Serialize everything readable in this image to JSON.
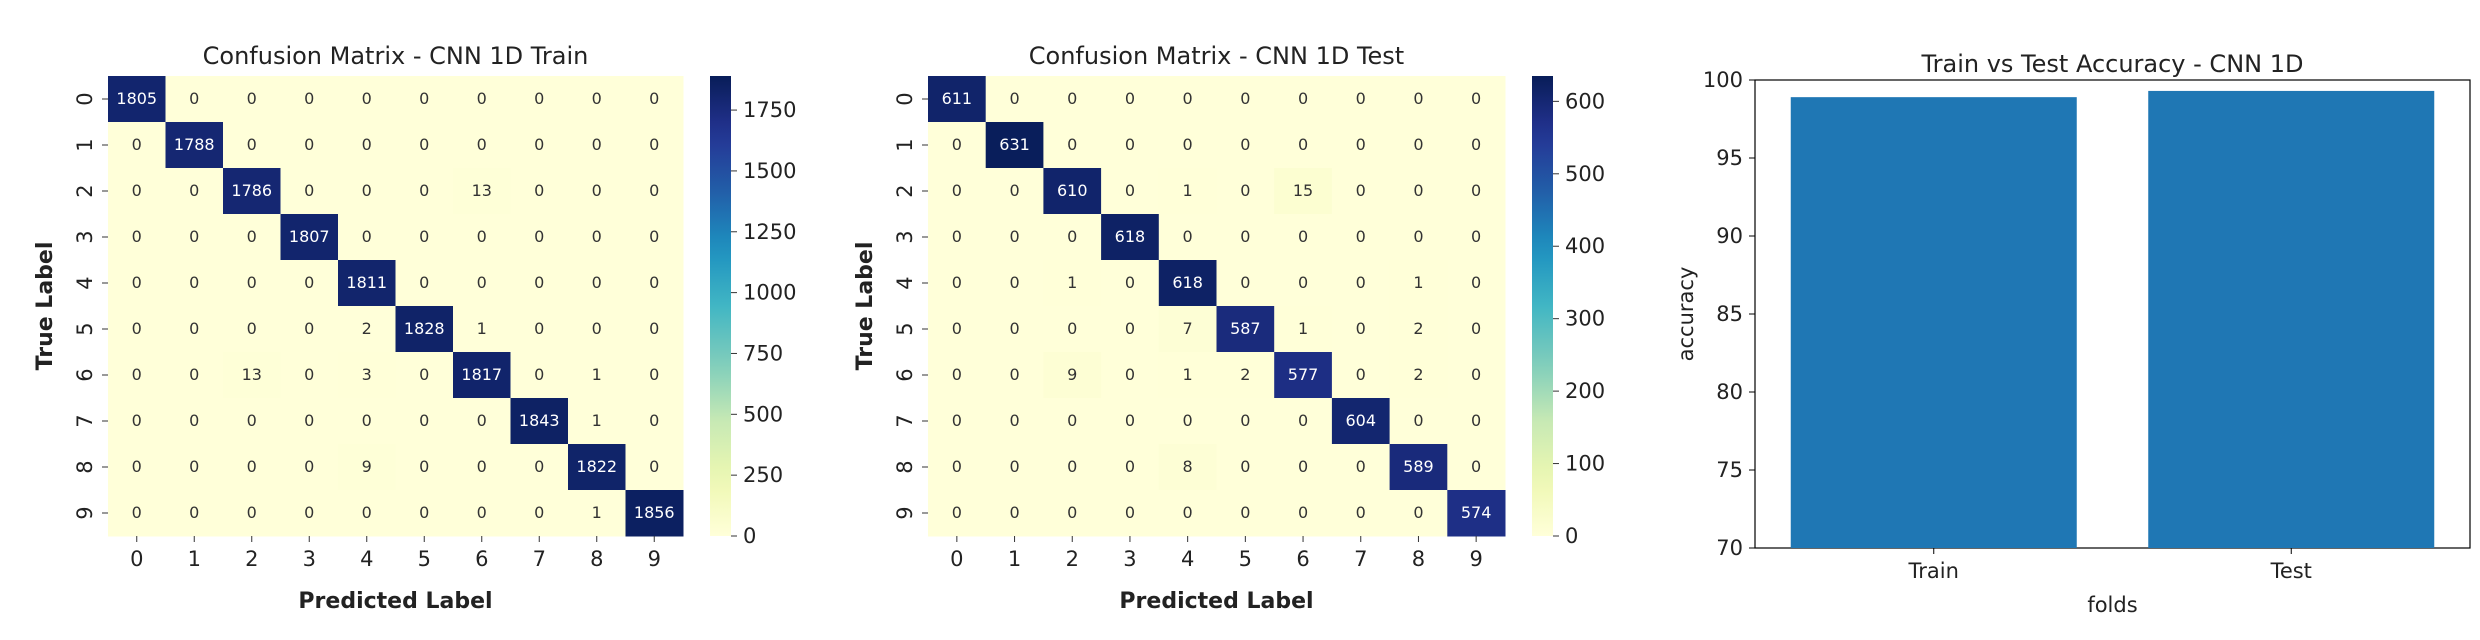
{
  "chart_data": [
    {
      "type": "heatmap",
      "title": "Confusion Matrix - CNN 1D Train",
      "xlabel": "Predicted Label",
      "ylabel": "True Label",
      "x_ticks": [
        "0",
        "1",
        "2",
        "3",
        "4",
        "5",
        "6",
        "7",
        "8",
        "9"
      ],
      "y_ticks": [
        "0",
        "1",
        "2",
        "3",
        "4",
        "5",
        "6",
        "7",
        "8",
        "9"
      ],
      "matrix": [
        [
          1805,
          0,
          0,
          0,
          0,
          0,
          0,
          0,
          0,
          0
        ],
        [
          0,
          1788,
          0,
          0,
          0,
          0,
          0,
          0,
          0,
          0
        ],
        [
          0,
          0,
          1786,
          0,
          0,
          0,
          13,
          0,
          0,
          0
        ],
        [
          0,
          0,
          0,
          1807,
          0,
          0,
          0,
          0,
          0,
          0
        ],
        [
          0,
          0,
          0,
          0,
          1811,
          0,
          0,
          0,
          0,
          0
        ],
        [
          0,
          0,
          0,
          0,
          2,
          1828,
          1,
          0,
          0,
          0
        ],
        [
          0,
          0,
          13,
          0,
          3,
          0,
          1817,
          0,
          1,
          0
        ],
        [
          0,
          0,
          0,
          0,
          0,
          0,
          0,
          1843,
          1,
          0
        ],
        [
          0,
          0,
          0,
          0,
          9,
          0,
          0,
          0,
          1822,
          0
        ],
        [
          0,
          0,
          0,
          0,
          0,
          0,
          0,
          0,
          1,
          1856
        ]
      ],
      "colorbar": {
        "min": 0,
        "max": 1890,
        "ticks": [
          0,
          250,
          500,
          750,
          1000,
          1250,
          1500,
          1750
        ]
      },
      "colormap": "YlGnBu"
    },
    {
      "type": "heatmap",
      "title": "Confusion Matrix - CNN 1D Test",
      "xlabel": "Predicted Label",
      "ylabel": "True Label",
      "x_ticks": [
        "0",
        "1",
        "2",
        "3",
        "4",
        "5",
        "6",
        "7",
        "8",
        "9"
      ],
      "y_ticks": [
        "0",
        "1",
        "2",
        "3",
        "4",
        "5",
        "6",
        "7",
        "8",
        "9"
      ],
      "matrix": [
        [
          611,
          0,
          0,
          0,
          0,
          0,
          0,
          0,
          0,
          0
        ],
        [
          0,
          631,
          0,
          0,
          0,
          0,
          0,
          0,
          0,
          0
        ],
        [
          0,
          0,
          610,
          0,
          1,
          0,
          15,
          0,
          0,
          0
        ],
        [
          0,
          0,
          0,
          618,
          0,
          0,
          0,
          0,
          0,
          0
        ],
        [
          0,
          0,
          1,
          0,
          618,
          0,
          0,
          0,
          1,
          0
        ],
        [
          0,
          0,
          0,
          0,
          7,
          587,
          1,
          0,
          2,
          0
        ],
        [
          0,
          0,
          9,
          0,
          1,
          2,
          577,
          0,
          2,
          0
        ],
        [
          0,
          0,
          0,
          0,
          0,
          0,
          0,
          604,
          0,
          0
        ],
        [
          0,
          0,
          0,
          0,
          8,
          0,
          0,
          0,
          589,
          0
        ],
        [
          0,
          0,
          0,
          0,
          0,
          0,
          0,
          0,
          0,
          574
        ]
      ],
      "colorbar": {
        "min": 0,
        "max": 635,
        "ticks": [
          0,
          100,
          200,
          300,
          400,
          500,
          600
        ]
      },
      "colormap": "YlGnBu"
    },
    {
      "type": "bar",
      "title": "Train vs Test Accuracy - CNN 1D",
      "xlabel": "folds",
      "ylabel": "accuracy",
      "categories": [
        "Train",
        "Test"
      ],
      "values": [
        98.9,
        99.3
      ],
      "ylim": [
        70,
        100
      ],
      "yticks": [
        70,
        75,
        80,
        85,
        90,
        95,
        100
      ],
      "color": "#1f77b4"
    }
  ]
}
